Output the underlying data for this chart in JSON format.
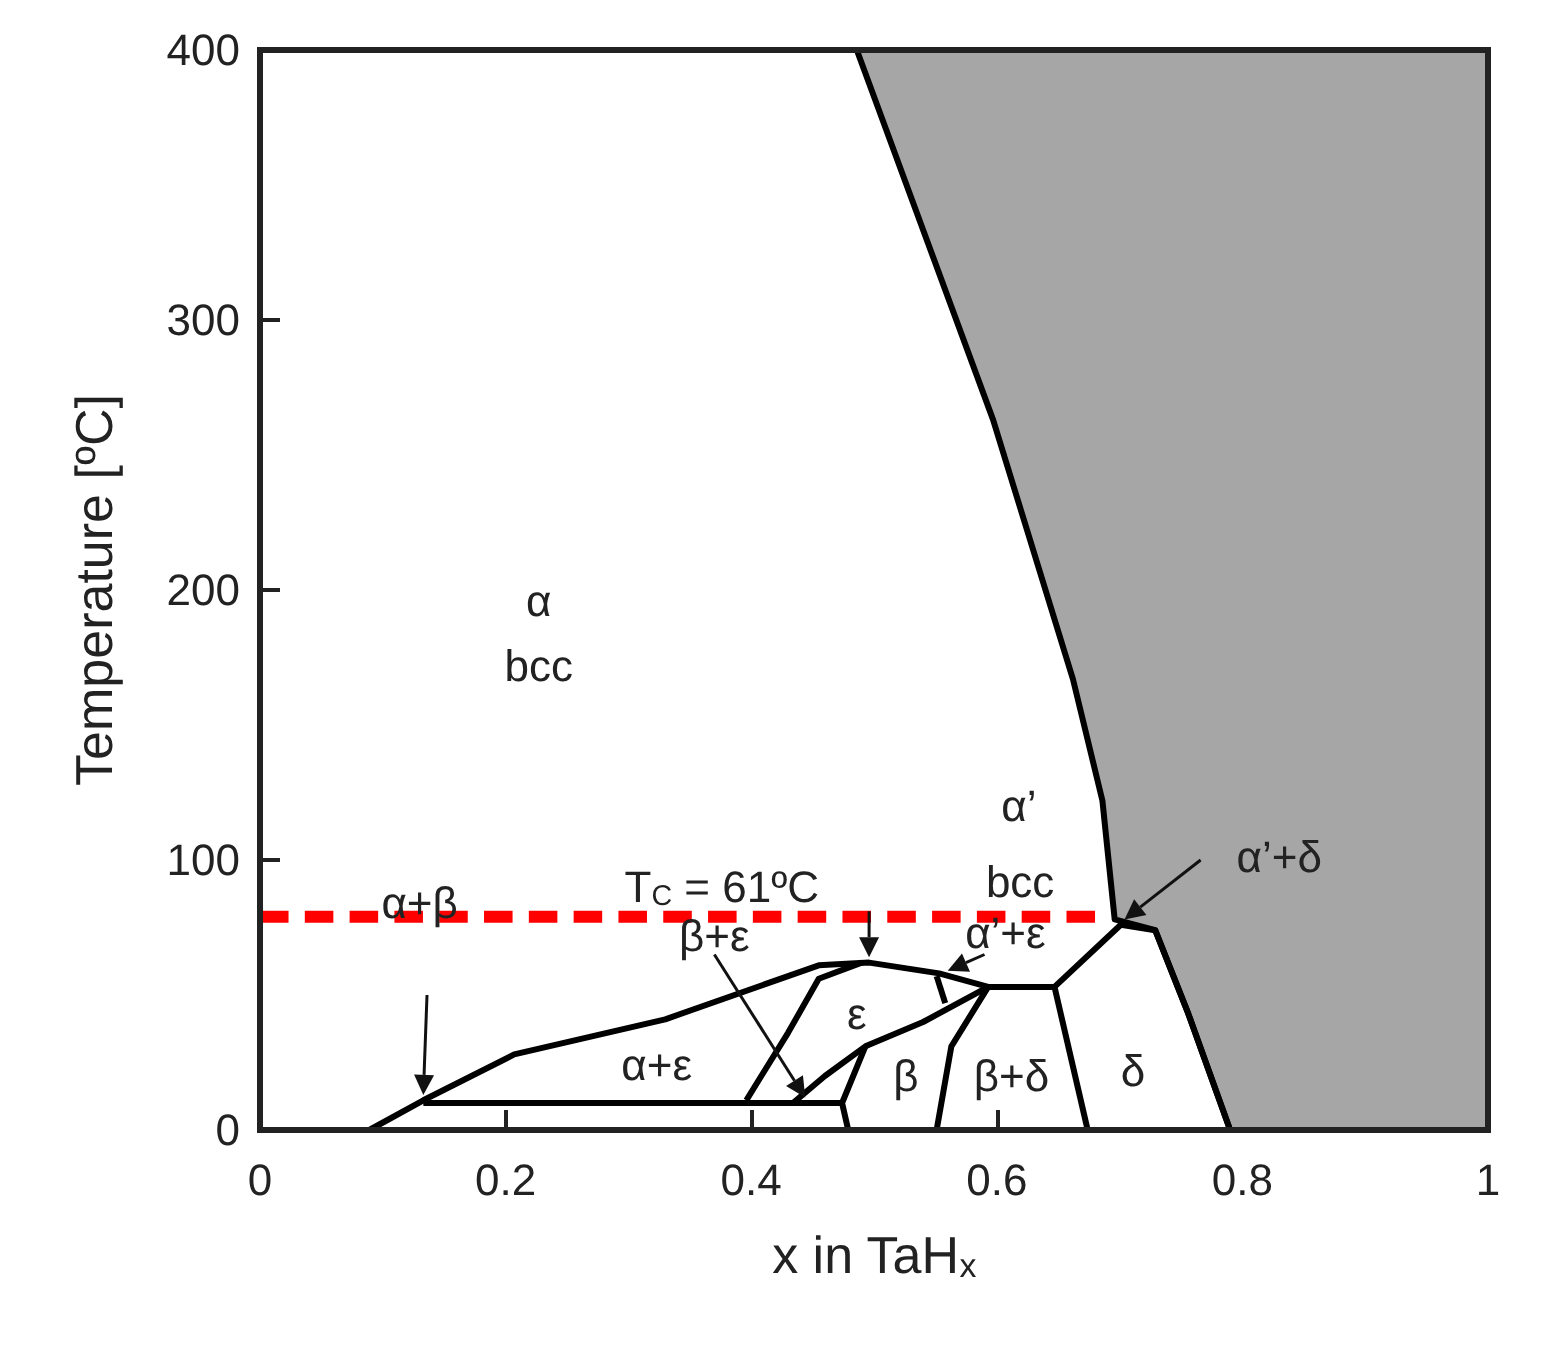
{
  "chart_data": {
    "type": "line",
    "xlabel": "x in TaH$_{x}$",
    "ylabel": "Temperature [ºC]",
    "xlim": [
      0,
      1
    ],
    "xticks": [
      0,
      0.2,
      0.4,
      0.6,
      0.8,
      1
    ],
    "ylim": [
      0,
      400
    ],
    "yticks": [
      0,
      100,
      200,
      300,
      400
    ],
    "marker": "none",
    "line_style": "solid",
    "series": [
      {
        "type": "area",
        "color": "#a6a6a6",
        "x": [
          0.486,
          0.597,
          0.662,
          0.686,
          0.696,
          0.729,
          0.756,
          0.79,
          1,
          1
        ],
        "values": [
          400,
          263,
          167,
          122,
          78,
          74,
          43,
          0,
          0,
          400
        ]
      },
      {
        "color": "#000000",
        "x": [
          0.089,
          0.133,
          0.207,
          0.33,
          0.455,
          0.496,
          0.553,
          0.593,
          0.647,
          0.701,
          0.729,
          0.756,
          0.79
        ],
        "values": [
          0,
          11,
          28,
          41,
          61,
          62,
          58,
          53,
          53,
          76,
          74,
          43,
          0
        ]
      },
      {
        "color": "#000000",
        "x": [
          0.133,
          0.474
        ],
        "values": [
          10,
          10
        ]
      },
      {
        "color": "#000000",
        "x": [
          0.396,
          0.43,
          0.455,
          0.49
        ],
        "values": [
          11,
          36,
          56,
          62
        ]
      },
      {
        "color": "#000000",
        "x": [
          0.434,
          0.46,
          0.493,
          0.54,
          0.593
        ],
        "values": [
          10,
          20,
          31,
          40,
          53
        ]
      },
      {
        "color": "#000000",
        "x": [
          0.479,
          0.474,
          0.493
        ],
        "values": [
          0,
          10,
          31
        ]
      },
      {
        "color": "#000000",
        "x": [
          0.551,
          0.558
        ],
        "values": [
          57,
          47
        ]
      },
      {
        "color": "#000000",
        "x": [
          0.551,
          0.563,
          0.593
        ],
        "values": [
          0,
          31,
          53
        ]
      },
      {
        "color": "#000000",
        "x": [
          0.674,
          0.647
        ],
        "values": [
          0,
          53
        ]
      },
      {
        "color": "#ff0000",
        "line_style": "dashed",
        "x": [
          0,
          0.68
        ],
        "values": [
          79,
          79
        ]
      }
    ],
    "annotations": [
      "α",
      "bcc",
      "α’",
      "bcc",
      "T$_{C}$ = 61ºC",
      "α’+δ",
      "α+β",
      "β+ε",
      "α’+ε",
      "ε",
      "α+ε",
      "β",
      "β+δ",
      "δ"
    ]
  }
}
